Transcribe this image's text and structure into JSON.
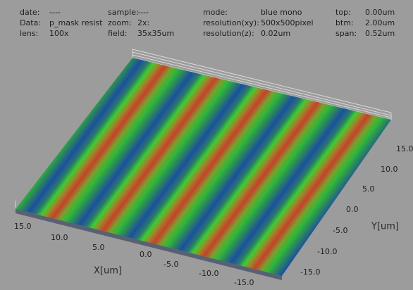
{
  "header": {
    "fields": [
      {
        "label": "date:",
        "value": "----"
      },
      {
        "label": "Data:",
        "value": "p_mask resist"
      },
      {
        "label": "lens:",
        "value": "100x"
      },
      {
        "label": "sample:",
        "value": "----"
      },
      {
        "label": "zoom:",
        "value": "2x:"
      },
      {
        "label": "field:",
        "value": "35x35um"
      },
      {
        "label": "mode:",
        "value": "blue mono"
      },
      {
        "label": "resolution(xy):",
        "value": "500x500pixel"
      },
      {
        "label": "resolution(z):",
        "value": "0.02um"
      },
      {
        "label": "top:",
        "value": "0.00um"
      },
      {
        "label": "btm:",
        "value": "2.00um"
      },
      {
        "label": "span:",
        "value": "0.52um"
      }
    ]
  },
  "axes": {
    "x": {
      "label": "X[um]",
      "ticks": [
        "15.0",
        "10.0",
        "5.0",
        "0.0",
        "-5.0",
        "-10.0",
        "-15.0"
      ]
    },
    "y": {
      "label": "Y[um]",
      "ticks": [
        "15.0",
        "10.0",
        "5.0",
        "0.0",
        "-5.0",
        "-10.0",
        "-15.0"
      ]
    }
  }
}
